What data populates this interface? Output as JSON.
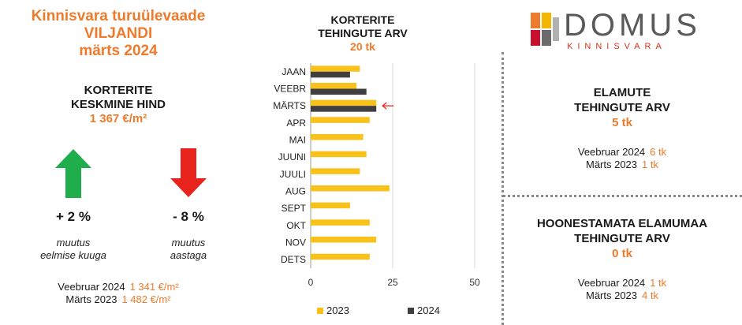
{
  "left": {
    "title_line1": "Kinnisvara turuülevaade",
    "title_line2": "VILJANDI",
    "title_line3": "märts 2024",
    "sub_line1": "KORTERITE",
    "sub_line2": "KESKMINE HIND",
    "price": "1 367 €/m²",
    "change_month": "+ 2 %",
    "change_month_note1": "muutus",
    "change_month_note2": "eelmise kuuga",
    "change_year": "- 8 %",
    "change_year_note1": "muutus",
    "change_year_note2": "aastaga",
    "compare1_label": "Veebruar 2024",
    "compare1_value": "1 341 €/m²",
    "compare2_label": "Märts 2023",
    "compare2_value": "1 482 €/m²",
    "arrow_up_color": "#1fae4b",
    "arrow_down_color": "#e8231b"
  },
  "chart_data": {
    "type": "bar",
    "orientation": "horizontal",
    "title_line1": "KORTERITE",
    "title_line2": "TEHINGUTE ARV",
    "title_value": "20 tk",
    "categories": [
      "JAAN",
      "VEEBR",
      "MÄRTS",
      "APR",
      "MAI",
      "JUUNI",
      "JUULI",
      "AUG",
      "SEPT",
      "OKT",
      "NOV",
      "DETS"
    ],
    "series": [
      {
        "name": "2023",
        "color": "#f9c21b",
        "values": [
          15,
          14,
          20,
          18,
          16,
          17,
          15,
          24,
          12,
          18,
          20,
          18
        ]
      },
      {
        "name": "2024",
        "color": "#3f3f3f",
        "values": [
          12,
          17,
          20,
          null,
          null,
          null,
          null,
          null,
          null,
          null,
          null,
          null
        ]
      }
    ],
    "xlim": [
      0,
      50
    ],
    "xticks": [
      "0",
      "25",
      "50"
    ],
    "grid": true,
    "highlight_category": "MÄRTS",
    "legend_position": "bottom"
  },
  "right": {
    "logo_word": "DOMUS",
    "logo_sub": "KINNISVARA",
    "houses_title1": "ELAMUTE",
    "houses_title2": "TEHINGUTE ARV",
    "houses_value": "5 tk",
    "houses_cmp1_label": "Veebruar 2024",
    "houses_cmp1_value": "6 tk",
    "houses_cmp2_label": "Märts 2023",
    "houses_cmp2_value": "1 tk",
    "land_title1": "HOONESTAMATA ELAMUMAA",
    "land_title2": "TEHINGUTE ARV",
    "land_value": "0 tk",
    "land_cmp1_label": "Veebruar 2024",
    "land_cmp1_value": "1 tk",
    "land_cmp2_label": "Märts 2023",
    "land_cmp2_value": "4 tk"
  }
}
